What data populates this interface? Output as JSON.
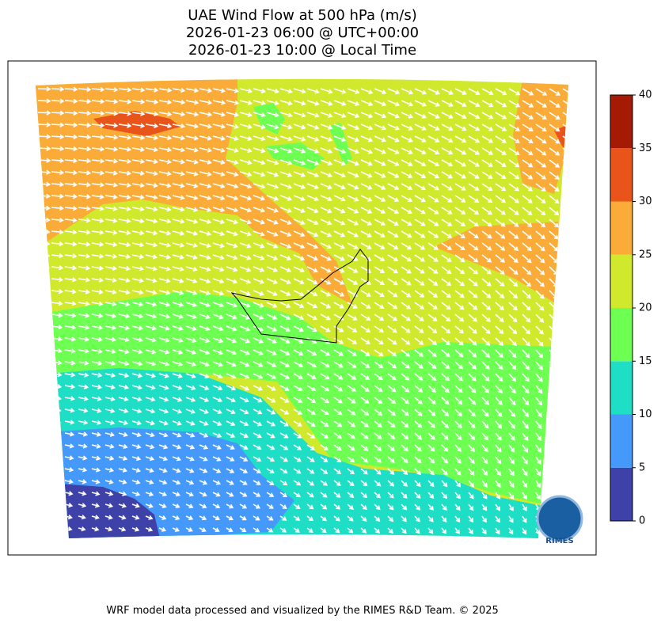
{
  "title": [
    "UAE Wind Flow at 500 hPa (m/s)",
    "2026-01-23 06:00 @ UTC+00:00",
    "2026-01-23 10:00 @ Local Time"
  ],
  "colorbar": {
    "lim": [
      0,
      40
    ],
    "ticks": [
      0,
      5,
      10,
      15,
      20,
      25,
      30,
      35,
      40
    ],
    "colors": [
      "#3e41a7",
      "#4499fa",
      "#1fdec6",
      "#6dff52",
      "#d0e92c",
      "#fbab38",
      "#e9541a",
      "#a41a04"
    ]
  },
  "logo": "RIMES",
  "footer": "WRF model data processed and visualized by the RIMES R&D Team. © 2025"
}
